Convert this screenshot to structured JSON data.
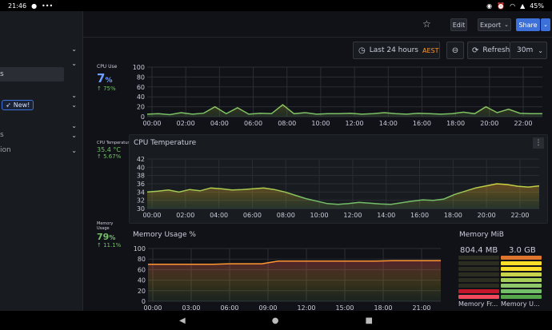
{
  "statusbar": {
    "time": "21:46",
    "battery": "45%"
  },
  "sidebar": {
    "items": [
      {
        "label": ""
      },
      {
        "label": ""
      },
      {
        "label": "s"
      },
      {
        "label": ""
      },
      {
        "label": "New!"
      },
      {
        "label": ""
      },
      {
        "label": "s"
      },
      {
        "label": "ion"
      }
    ]
  },
  "toolbar": {
    "edit": "Edit",
    "export": "Export",
    "share": "Share"
  },
  "timepicker": {
    "range": "Last 24 hours",
    "tz": "AEST",
    "refresh": "Refresh",
    "interval": "30m"
  },
  "panels": {
    "cpu_use": {
      "title": "CPU Use",
      "value": "7",
      "unit": "%",
      "delta": "↑ 75%"
    },
    "cpu_temp_stat": {
      "title": "CPU Temperature",
      "value": "35.4",
      "unit": "°C",
      "delta": "↑ 5.67%"
    },
    "memory_usage_stat": {
      "title": "Memory Usage",
      "value": "79",
      "unit": "%",
      "delta": "↑ 11.1%"
    },
    "cpu_temp_chart_title": "CPU Temperature",
    "memory_chart_title": "Memory Usage %",
    "memory_mib": {
      "title": "Memory MiB",
      "free_value": "804.4 MB",
      "used_value": "3.0 GB",
      "free_label": "Memory Fr...",
      "used_label": "Memory U..."
    }
  },
  "colors": {
    "accent": "#3d71d9",
    "green": "#73bf69",
    "yellow": "#fade2a",
    "orange": "#ff9830",
    "blue": "#6e9fff"
  },
  "chart_data": [
    {
      "type": "line",
      "title": "",
      "ylim": [
        0,
        100
      ],
      "yticks": [
        "100",
        "80",
        "60",
        "40",
        "20",
        "0"
      ],
      "xticks": [
        "00:00",
        "02:00",
        "04:00",
        "06:00",
        "08:00",
        "10:00",
        "12:00",
        "14:00",
        "16:00",
        "18:00",
        "20:00",
        "22:00"
      ],
      "series": [
        {
          "values": [
            5,
            6,
            4,
            8,
            5,
            7,
            20,
            6,
            18,
            5,
            7,
            6,
            24,
            6,
            8,
            5,
            6,
            6,
            7,
            5,
            6,
            8,
            6,
            5,
            7,
            6,
            5,
            6,
            9,
            6,
            20,
            8,
            15,
            7,
            6,
            6
          ]
        }
      ]
    },
    {
      "type": "line",
      "title": "CPU Temperature",
      "ylim": [
        30,
        42
      ],
      "yticks": [
        "42",
        "40",
        "38",
        "36",
        "34",
        "32",
        "30"
      ],
      "xticks": [
        "00:00",
        "02:00",
        "04:00",
        "06:00",
        "08:00",
        "10:00",
        "12:00",
        "14:00",
        "16:00",
        "18:00",
        "20:00",
        "22:00"
      ],
      "series": [
        {
          "values": [
            34,
            34.2,
            34.5,
            34,
            34.6,
            34.3,
            35,
            34.8,
            34.5,
            34.6,
            34.8,
            35,
            34.6,
            34,
            33.2,
            32.4,
            31.8,
            31.2,
            31,
            31.2,
            31.5,
            31.3,
            31.1,
            31,
            31.4,
            31.8,
            32.1,
            32,
            32.3,
            33.4,
            34.2,
            35,
            35.5,
            36,
            35.8,
            35.4,
            35.2,
            35.5
          ]
        }
      ]
    },
    {
      "type": "line",
      "title": "Memory Usage %",
      "ylim": [
        0,
        100
      ],
      "yticks": [
        "100",
        "80",
        "60",
        "40",
        "20",
        "0"
      ],
      "xticks": [
        "00:00",
        "03:00",
        "06:00",
        "09:00",
        "12:00",
        "15:00",
        "18:00",
        "21:00"
      ],
      "series": [
        {
          "values": [
            70,
            70,
            70,
            70,
            70,
            71,
            71,
            71,
            76,
            76,
            76,
            76,
            76,
            76,
            76,
            77,
            77,
            77,
            77
          ]
        }
      ]
    }
  ]
}
